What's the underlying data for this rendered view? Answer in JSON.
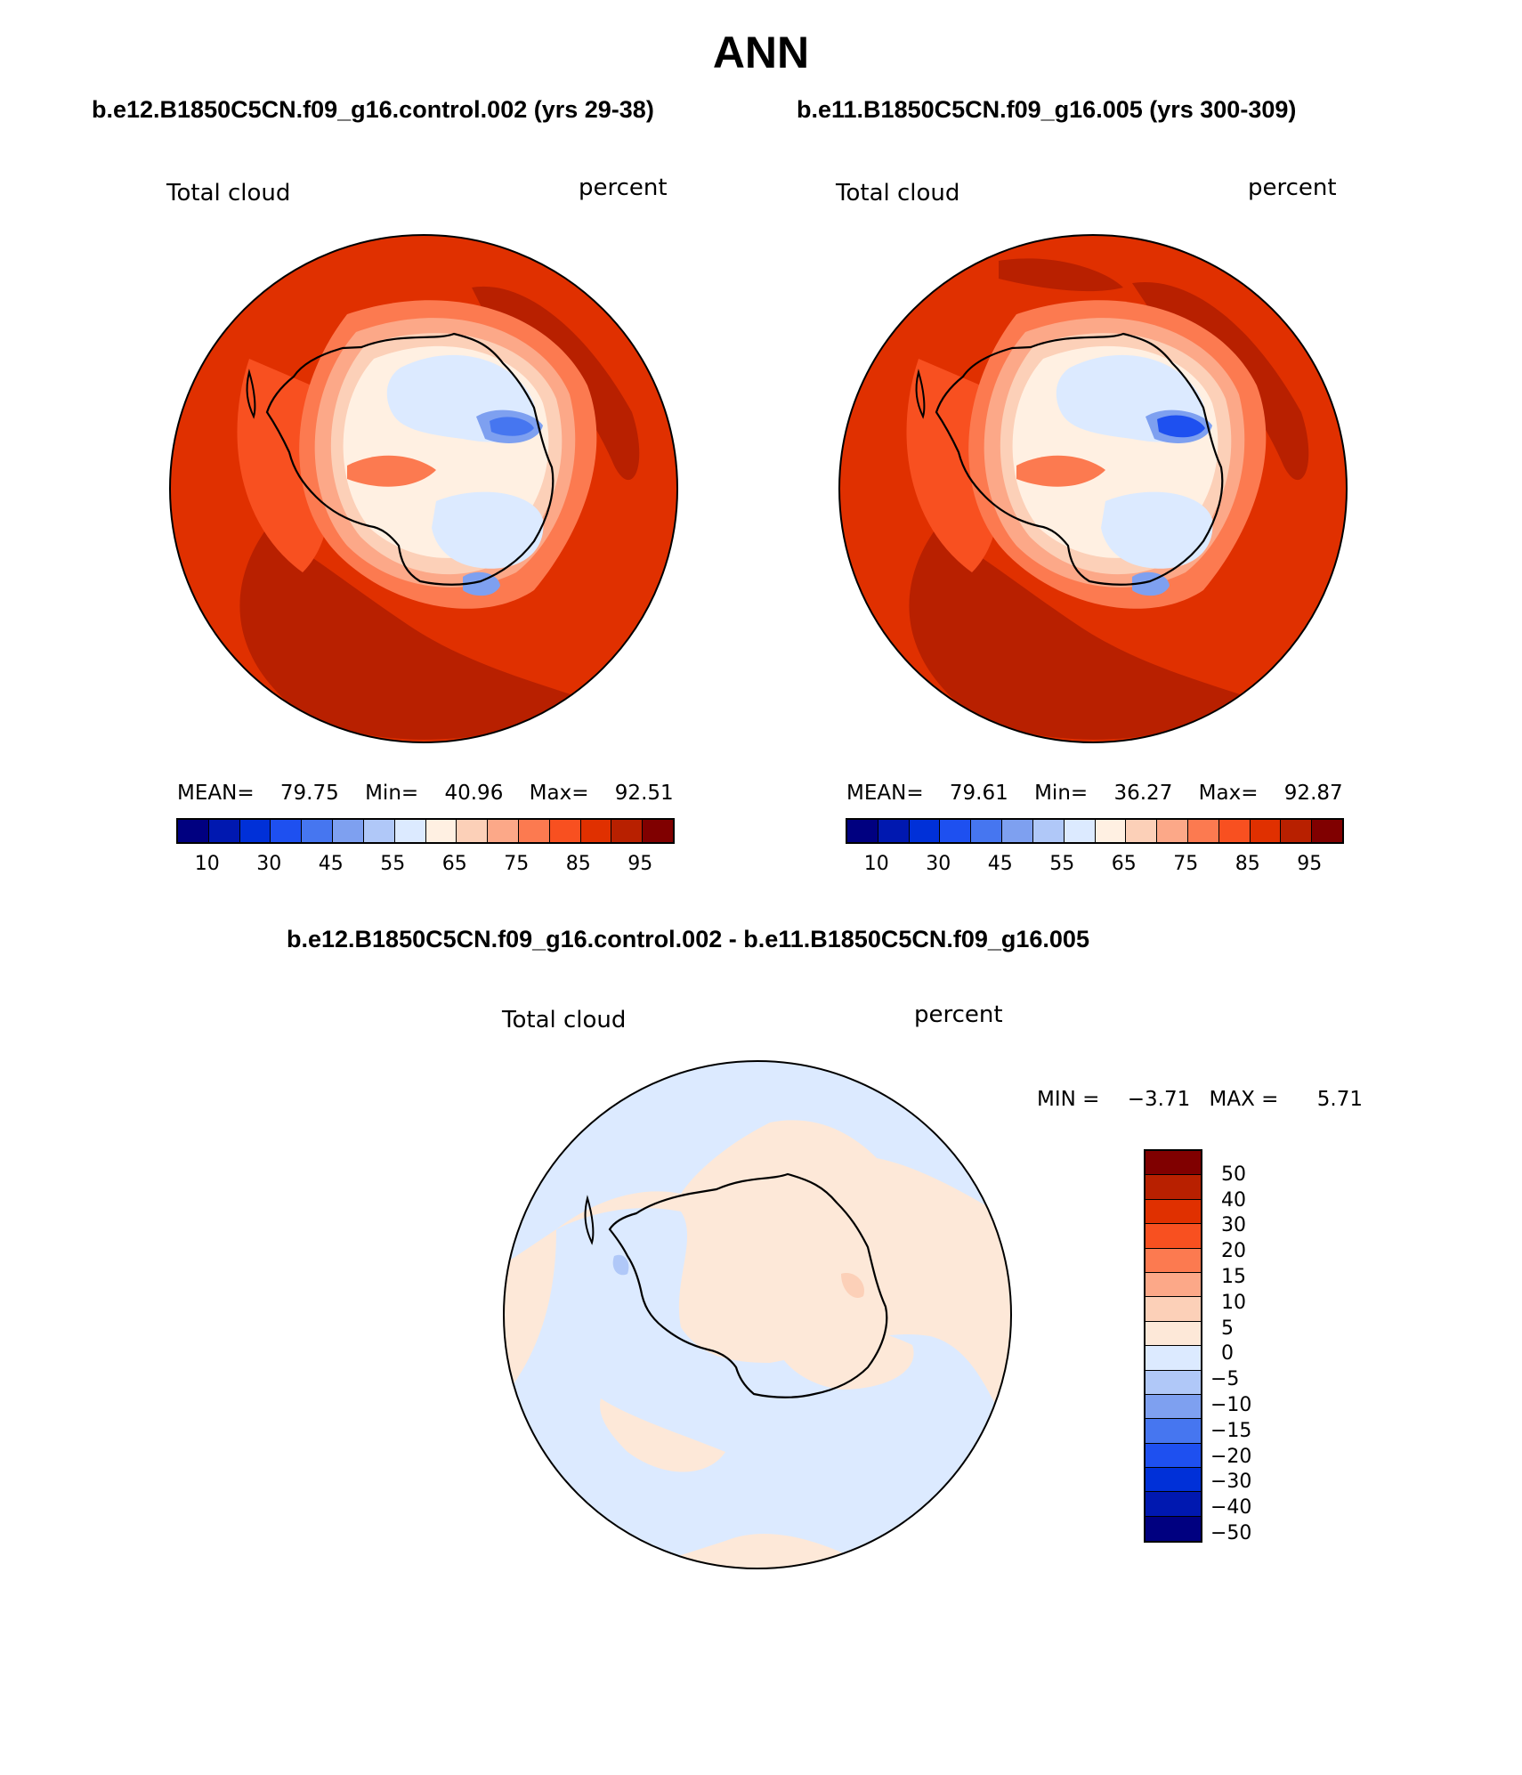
{
  "title": "ANN",
  "panels": [
    {
      "case": "b.e12.B1850C5CN.f09_g16.control.002 (yrs 29-38)",
      "variable": "Total cloud",
      "units": "percent",
      "stats": {
        "mean_label": "MEAN=",
        "mean": "79.75",
        "min_label": "Min=",
        "min": "40.96",
        "max_label": "Max=",
        "max": "92.51"
      }
    },
    {
      "case": "b.e11.B1850C5CN.f09_g16.005 (yrs 300-309)",
      "variable": "Total cloud",
      "units": "percent",
      "stats": {
        "mean_label": "MEAN=",
        "mean": "79.61",
        "min_label": "Min=",
        "min": "36.27",
        "max_label": "Max=",
        "max": "92.87"
      }
    }
  ],
  "abs_colorbar": {
    "colors": [
      "#000080",
      "#0018b0",
      "#0030d8",
      "#1e50f0",
      "#4676f0",
      "#7ea0f0",
      "#b0c8f8",
      "#dceaff",
      "#fff0e2",
      "#fcd0b8",
      "#fca888",
      "#fc7a50",
      "#f85020",
      "#e03000",
      "#b82000",
      "#800000"
    ],
    "ticks": [
      "10",
      "30",
      "45",
      "55",
      "65",
      "75",
      "85",
      "95"
    ]
  },
  "diff": {
    "title": "b.e12.B1850C5CN.f09_g16.control.002 - b.e11.B1850C5CN.f09_g16.005",
    "variable": "Total cloud",
    "units": "percent",
    "min_label": "MIN =",
    "min": "−3.71",
    "max_label": "MAX =",
    "max": "5.71",
    "colors": [
      "#800000",
      "#b82000",
      "#e03000",
      "#f85020",
      "#fc7a50",
      "#fca888",
      "#fcd0b8",
      "#fde8d8",
      "#dceaff",
      "#b0c8f8",
      "#7ea0f0",
      "#4676f0",
      "#1e50f0",
      "#0030d8",
      "#0018b0",
      "#000080"
    ],
    "ticks": [
      "50",
      "40",
      "30",
      "20",
      "15",
      "10",
      "5",
      "0",
      "−5",
      "−10",
      "−15",
      "−20",
      "−30",
      "−40",
      "−50"
    ]
  }
}
